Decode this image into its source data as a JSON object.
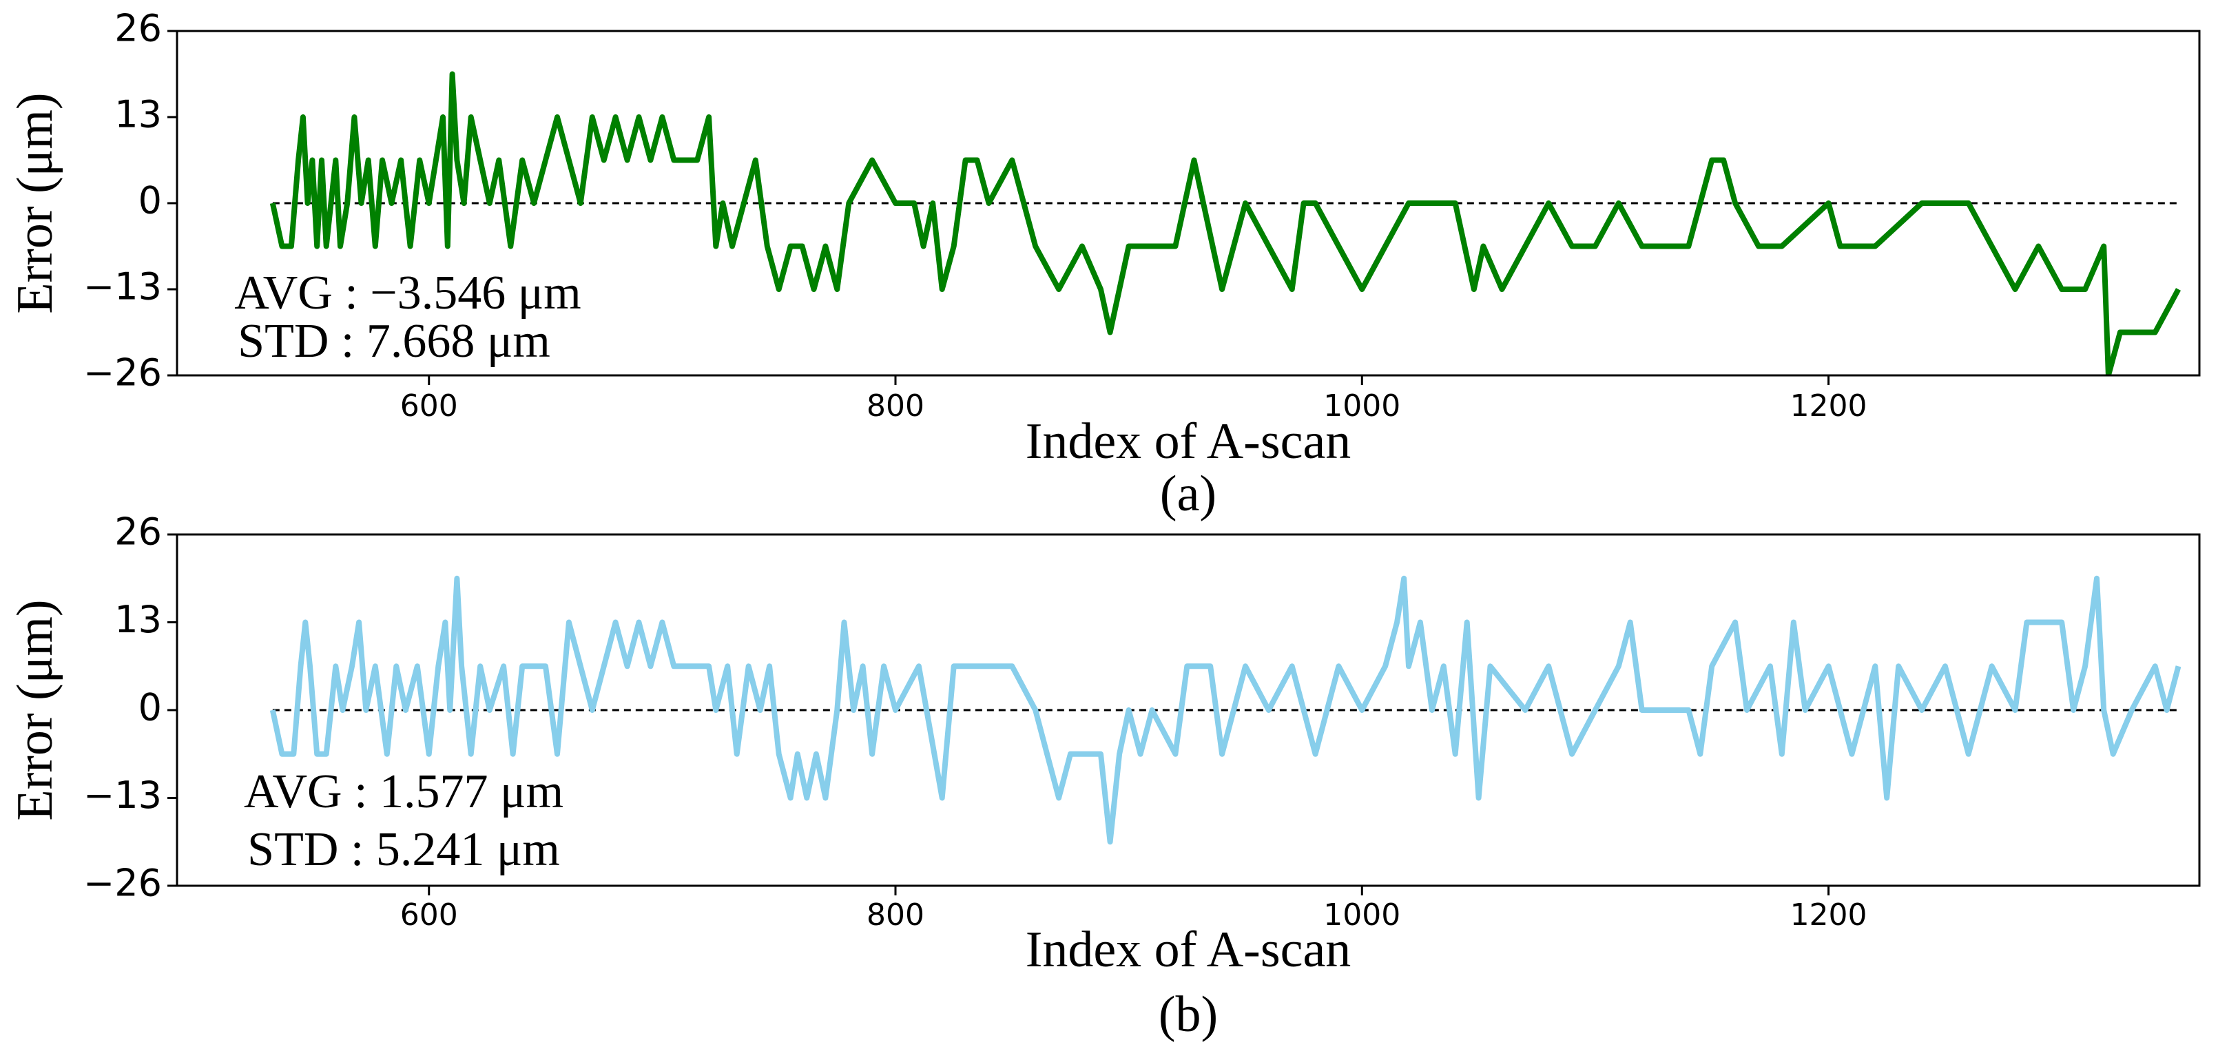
{
  "chart_data": [
    {
      "type": "line",
      "caption": "(a)",
      "xlabel": "Index of A-scan",
      "ylabel": "Error (μm)",
      "annotations": [
        "AVG : −3.546 μm",
        "STD : 7.668 μm"
      ],
      "color": "#008000",
      "reference_line": 0,
      "xlim": [
        492,
        1359
      ],
      "ylim": [
        -26,
        26
      ],
      "xticks": [
        600,
        800,
        1000,
        1200
      ],
      "yticks": [
        26,
        13,
        0,
        {
          "value": -13,
          "label": "−13"
        },
        {
          "value": -26,
          "label": "−26"
        }
      ],
      "x": [
        533,
        537,
        541,
        544,
        546,
        548,
        550,
        552,
        554,
        556,
        558,
        560,
        562,
        565,
        568,
        571,
        574,
        577,
        580,
        584,
        588,
        592,
        596,
        600,
        603,
        606,
        608,
        610,
        612,
        615,
        618,
        622,
        626,
        630,
        635,
        640,
        645,
        650,
        655,
        660,
        665,
        670,
        675,
        680,
        685,
        690,
        695,
        700,
        705,
        710,
        715,
        720,
        723,
        726,
        730,
        735,
        740,
        745,
        750,
        755,
        760,
        765,
        770,
        775,
        780,
        790,
        800,
        808,
        812,
        816,
        820,
        825,
        830,
        835,
        840,
        850,
        860,
        870,
        880,
        888,
        892,
        896,
        900,
        910,
        920,
        928,
        932,
        940,
        950,
        960,
        970,
        975,
        980,
        990,
        1000,
        1010,
        1020,
        1040,
        1048,
        1052,
        1060,
        1080,
        1090,
        1100,
        1110,
        1120,
        1140,
        1150,
        1155,
        1160,
        1170,
        1180,
        1200,
        1205,
        1220,
        1240,
        1260,
        1280,
        1290,
        1300,
        1310,
        1318,
        1320,
        1325,
        1340,
        1350
      ],
      "values": [
        0,
        -6.5,
        -6.5,
        6.5,
        13,
        0,
        6.5,
        -6.5,
        6.5,
        -6.5,
        0,
        6.5,
        -6.5,
        0,
        13,
        0,
        6.5,
        -6.5,
        6.5,
        0,
        6.5,
        -6.5,
        6.5,
        0,
        6.5,
        13,
        -6.5,
        19.5,
        6.5,
        0,
        13,
        6.5,
        0,
        6.5,
        -6.5,
        6.5,
        0,
        6.5,
        13,
        6.5,
        0,
        13,
        6.5,
        13,
        6.5,
        13,
        6.5,
        13,
        6.5,
        6.5,
        6.5,
        13,
        -6.5,
        0,
        -6.5,
        0,
        6.5,
        -6.5,
        -13,
        -6.5,
        -6.5,
        -13,
        -6.5,
        -13,
        0,
        6.5,
        0,
        0,
        -6.5,
        0,
        -13,
        -6.5,
        6.5,
        6.5,
        0,
        6.5,
        -6.5,
        -13,
        -6.5,
        -13,
        -19.5,
        -13,
        -6.5,
        -6.5,
        -6.5,
        6.5,
        0,
        -13,
        0,
        -6.5,
        -13,
        0,
        0,
        -6.5,
        -13,
        -6.5,
        0,
        0,
        -13,
        -6.5,
        -13,
        0,
        -6.5,
        -6.5,
        0,
        -6.5,
        -6.5,
        6.5,
        6.5,
        0,
        -6.5,
        -6.5,
        0,
        -6.5,
        -6.5,
        0,
        0,
        -13,
        -6.5,
        -13,
        -13,
        -6.5,
        -26,
        -19.5,
        -19.5,
        -13
      ]
    },
    {
      "type": "line",
      "caption": "(b)",
      "xlabel": "Index of A-scan",
      "ylabel": "Error (μm)",
      "annotations": [
        "AVG : 1.577 μm",
        "STD : 5.241 μm"
      ],
      "color": "#87ceeb",
      "reference_line": 0,
      "xlim": [
        492,
        1359
      ],
      "ylim": [
        -26,
        26
      ],
      "xticks": [
        600,
        800,
        1000,
        1200
      ],
      "yticks": [
        26,
        13,
        0,
        {
          "value": -13,
          "label": "−13"
        },
        {
          "value": -26,
          "label": "−26"
        }
      ],
      "x": [
        533,
        537,
        542,
        545,
        547,
        549,
        552,
        556,
        560,
        563,
        567,
        570,
        573,
        577,
        582,
        586,
        590,
        595,
        600,
        604,
        607,
        609,
        612,
        614,
        618,
        622,
        626,
        632,
        636,
        640,
        650,
        655,
        660,
        665,
        670,
        675,
        680,
        685,
        690,
        695,
        700,
        705,
        720,
        723,
        728,
        732,
        737,
        742,
        746,
        750,
        755,
        758,
        762,
        766,
        770,
        775,
        778,
        782,
        786,
        790,
        795,
        800,
        810,
        820,
        825,
        840,
        850,
        860,
        865,
        870,
        875,
        882,
        888,
        892,
        896,
        900,
        905,
        910,
        920,
        925,
        935,
        940,
        950,
        960,
        970,
        980,
        990,
        1000,
        1010,
        1015,
        1018,
        1020,
        1025,
        1030,
        1035,
        1040,
        1045,
        1050,
        1055,
        1070,
        1080,
        1090,
        1100,
        1110,
        1115,
        1120,
        1140,
        1145,
        1150,
        1160,
        1165,
        1175,
        1180,
        1185,
        1190,
        1200,
        1210,
        1220,
        1225,
        1230,
        1240,
        1250,
        1260,
        1270,
        1280,
        1285,
        1300,
        1305,
        1310,
        1315,
        1318,
        1322,
        1330,
        1340,
        1345,
        1350
      ],
      "values": [
        0,
        -6.5,
        -6.5,
        6.5,
        13,
        6.5,
        -6.5,
        -6.5,
        6.5,
        0,
        6.5,
        13,
        0,
        6.5,
        -6.5,
        6.5,
        0,
        6.5,
        -6.5,
        6.5,
        13,
        0,
        19.5,
        6.5,
        -6.5,
        6.5,
        0,
        6.5,
        -6.5,
        6.5,
        6.5,
        -6.5,
        13,
        6.5,
        0,
        6.5,
        13,
        6.5,
        13,
        6.5,
        13,
        6.5,
        6.5,
        0,
        6.5,
        -6.5,
        6.5,
        0,
        6.5,
        -6.5,
        -13,
        -6.5,
        -13,
        -6.5,
        -13,
        0,
        13,
        0,
        6.5,
        -6.5,
        6.5,
        0,
        6.5,
        -13,
        6.5,
        6.5,
        6.5,
        0,
        -6.5,
        -13,
        -6.5,
        -6.5,
        -6.5,
        -19.5,
        -6.5,
        0,
        -6.5,
        0,
        -6.5,
        6.5,
        6.5,
        -6.5,
        6.5,
        0,
        6.5,
        -6.5,
        6.5,
        0,
        6.5,
        13,
        19.5,
        6.5,
        13,
        0,
        6.5,
        -6.5,
        13,
        -13,
        6.5,
        0,
        6.5,
        -6.5,
        0,
        6.5,
        13,
        0,
        0,
        -6.5,
        6.5,
        13,
        0,
        6.5,
        -6.5,
        13,
        0,
        6.5,
        -6.5,
        6.5,
        -13,
        6.5,
        0,
        6.5,
        -6.5,
        6.5,
        0,
        13,
        13,
        0,
        6.5,
        19.5,
        0,
        -6.5,
        0,
        6.5,
        0,
        6.5
      ]
    }
  ]
}
